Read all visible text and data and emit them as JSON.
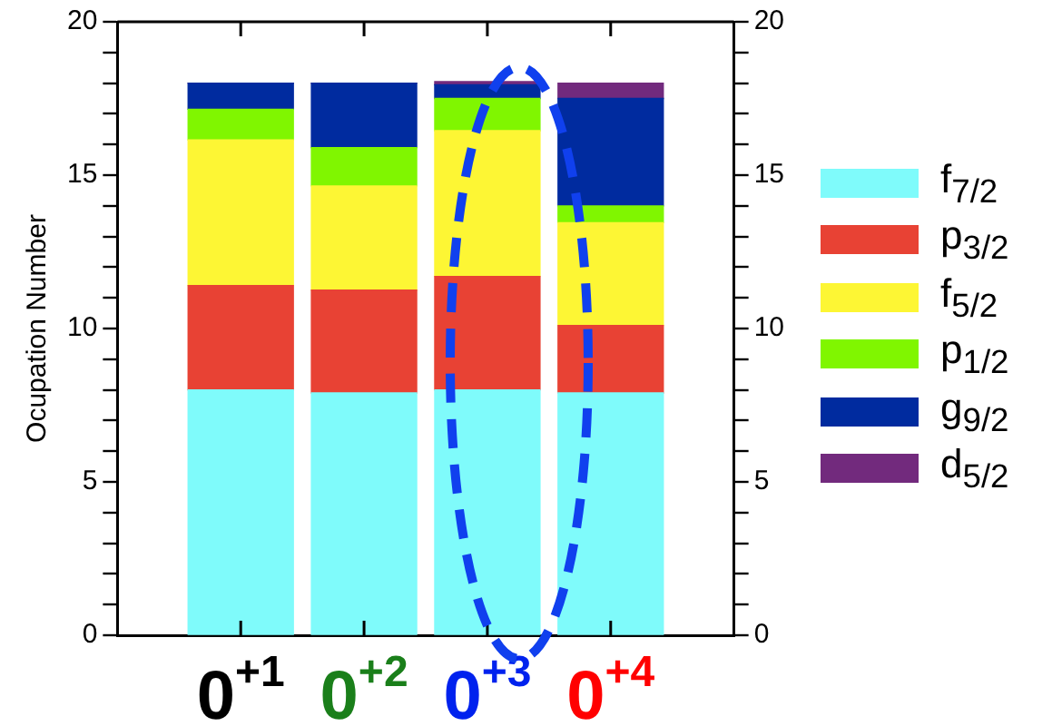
{
  "chart_data": {
    "type": "bar",
    "stacked": true,
    "ylabel": "Ocupation Number",
    "categories": [
      "0$^{+1}$",
      "0$^{+2}$",
      "0$^{+3}$",
      "0$^{+4}$"
    ],
    "series": [
      {
        "name": "f$_{7/2}$",
        "color": "#7ffbfb",
        "values": [
          8.0,
          7.9,
          8.0,
          7.9
        ]
      },
      {
        "name": "p$_{3/2}$",
        "color": "#e84234",
        "values": [
          3.4,
          3.35,
          3.7,
          2.2
        ]
      },
      {
        "name": "f$_{5/2}$",
        "color": "#fdf634",
        "values": [
          4.75,
          3.4,
          4.75,
          3.35
        ]
      },
      {
        "name": "p$_{1/2}$",
        "color": "#80f600",
        "values": [
          1.0,
          1.25,
          1.05,
          0.55
        ]
      },
      {
        "name": "g$_{9/2}$",
        "color": "#002b9f",
        "values": [
          0.85,
          2.1,
          0.45,
          3.5
        ]
      },
      {
        "name": "d$_{5/2}$",
        "color": "#722a7d",
        "values": [
          0,
          0,
          0.1,
          0.5
        ]
      }
    ],
    "ylim": [
      0,
      20
    ],
    "yticks": [
      0,
      {
        "value": 1,
        "label": null
      },
      {
        "value": 2,
        "label": null
      },
      {
        "value": 3,
        "label": null
      },
      {
        "value": 4,
        "label": null
      },
      5,
      {
        "value": 6,
        "label": null
      },
      {
        "value": 7,
        "label": null
      },
      {
        "value": 8,
        "label": null
      },
      {
        "value": 9,
        "label": null
      },
      10,
      {
        "value": 11,
        "label": null
      },
      {
        "value": 12,
        "label": null
      },
      {
        "value": 13,
        "label": null
      },
      {
        "value": 14,
        "label": null
      },
      15,
      {
        "value": 16,
        "label": null
      },
      {
        "value": 17,
        "label": null
      },
      {
        "value": 18,
        "label": null
      },
      {
        "value": 19,
        "label": null
      },
      20
    ],
    "y2lim": [
      0,
      20
    ],
    "y2ticks": [
      0,
      {
        "value": 1,
        "label": null
      },
      {
        "value": 2,
        "label": null
      },
      {
        "value": 3,
        "label": null
      },
      {
        "value": 4,
        "label": null
      },
      5,
      {
        "value": 6,
        "label": null
      },
      {
        "value": 7,
        "label": null
      },
      {
        "value": 8,
        "label": null
      },
      {
        "value": 9,
        "label": null
      },
      10,
      {
        "value": 11,
        "label": null
      },
      {
        "value": 12,
        "label": null
      },
      {
        "value": 13,
        "label": null
      },
      {
        "value": 14,
        "label": null
      },
      15,
      {
        "value": 16,
        "label": null
      },
      {
        "value": 17,
        "label": null
      },
      {
        "value": 18,
        "label": null
      },
      {
        "value": 19,
        "label": null
      },
      20
    ],
    "grid": false,
    "legend": "right"
  }
}
